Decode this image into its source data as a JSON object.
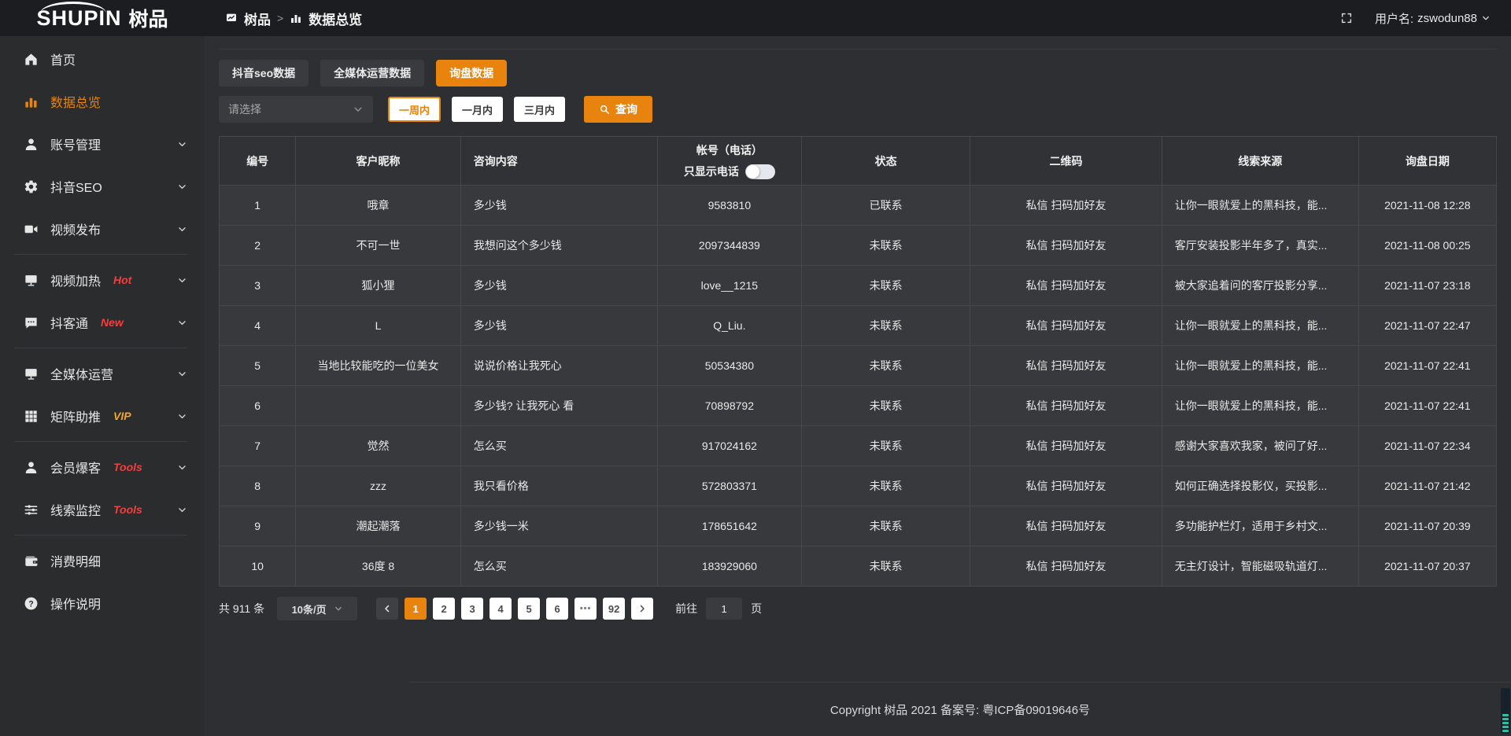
{
  "colors": {
    "accent": "#E8830D",
    "link-orange": "#E8820C",
    "badge-red": "#F23F3F",
    "badge-gold": "#F5A623"
  },
  "topbar": {
    "brand": "SHUPIN",
    "brand_cn": "树品",
    "breadcrumb": {
      "home": "树品",
      "separator": ">",
      "current": "数据总览"
    },
    "username_label": "用户名:",
    "username": "zswodun88"
  },
  "sidebar": {
    "items": [
      {
        "label": "首页",
        "icon": "home"
      },
      {
        "label": "数据总览",
        "icon": "bar-chart",
        "active": true
      },
      {
        "label": "账号管理",
        "icon": "user",
        "expandable": true
      },
      {
        "label": "抖音SEO",
        "icon": "gear",
        "expandable": true
      },
      {
        "label": "视频发布",
        "icon": "video",
        "expandable": true
      },
      {
        "divider": true
      },
      {
        "label": "视频加热",
        "icon": "screen",
        "badge": "Hot",
        "badge_color": "red",
        "expandable": true
      },
      {
        "label": "抖客通",
        "icon": "chat",
        "badge": "New",
        "badge_color": "red",
        "expandable": true
      },
      {
        "divider": true
      },
      {
        "label": "全媒体运营",
        "icon": "monitor",
        "expandable": true
      },
      {
        "label": "矩阵助推",
        "icon": "grid",
        "badge": "VIP",
        "badge_color": "gold",
        "expandable": true
      },
      {
        "divider": true
      },
      {
        "label": "会员爆客",
        "icon": "user",
        "badge": "Tools",
        "badge_color": "red",
        "expandable": true
      },
      {
        "label": "线索监控",
        "icon": "sliders",
        "badge": "Tools",
        "badge_color": "red",
        "expandable": true
      },
      {
        "divider": true
      },
      {
        "label": "消费明细",
        "icon": "wallet"
      },
      {
        "label": "操作说明",
        "icon": "question"
      }
    ]
  },
  "tabs": [
    {
      "label": "抖音seo数据"
    },
    {
      "label": "全媒体运营数据"
    },
    {
      "label": "询盘数据",
      "active": true
    }
  ],
  "filters": {
    "select_placeholder": "请选择",
    "periods": [
      {
        "label": "一周内",
        "active": true
      },
      {
        "label": "一月内"
      },
      {
        "label": "三月内"
      }
    ],
    "search_label": "查询"
  },
  "table": {
    "headers": [
      "编号",
      "客户昵称",
      "咨询内容",
      "帐号（电话）",
      "状态",
      "二维码",
      "线索来源",
      "询盘日期"
    ],
    "phone_toggle_label": "只显示电话",
    "rows": [
      {
        "id": "1",
        "nickname": "哦章",
        "content": "多少钱",
        "account": "9583810",
        "status": "已联系",
        "contacted": true,
        "qrcode": "私信 扫码加好友",
        "source": "让你一眼就爱上的黑科技，能...",
        "date": "2021-11-08 12:28"
      },
      {
        "id": "2",
        "nickname": "不可一世",
        "content": "我想问这个多少钱",
        "account": "2097344839",
        "status": "未联系",
        "qrcode": "私信 扫码加好友",
        "source": "客厅安装投影半年多了，真实...",
        "date": "2021-11-08 00:25"
      },
      {
        "id": "3",
        "nickname": "狐小狸",
        "content": "多少钱",
        "account": "love__1215",
        "status": "未联系",
        "qrcode": "私信 扫码加好友",
        "source": "被大家追着问的客厅投影分享...",
        "date": "2021-11-07 23:18"
      },
      {
        "id": "4",
        "nickname": "L",
        "content": "多少钱",
        "account": "Q_Liu.",
        "status": "未联系",
        "qrcode": "私信 扫码加好友",
        "source": "让你一眼就爱上的黑科技，能...",
        "date": "2021-11-07 22:47"
      },
      {
        "id": "5",
        "nickname": "当地比较能吃的一位美女",
        "content": "说说价格让我死心",
        "account": "50534380",
        "status": "未联系",
        "qrcode": "私信 扫码加好友",
        "source": "让你一眼就爱上的黑科技，能...",
        "date": "2021-11-07 22:41"
      },
      {
        "id": "6",
        "nickname": "",
        "content": "多少钱? 让我死心 看",
        "account": "70898792",
        "status": "未联系",
        "qrcode": "私信 扫码加好友",
        "source": "让你一眼就爱上的黑科技，能...",
        "date": "2021-11-07 22:41"
      },
      {
        "id": "7",
        "nickname": "觉然",
        "content": "怎么买",
        "account": "917024162",
        "status": "未联系",
        "qrcode": "私信 扫码加好友",
        "source": "感谢大家喜欢我家，被问了好...",
        "date": "2021-11-07 22:34"
      },
      {
        "id": "8",
        "nickname": "zzz",
        "content": "我只看价格",
        "account": "572803371",
        "status": "未联系",
        "qrcode": "私信 扫码加好友",
        "source": "如何正确选择投影仪，买投影...",
        "date": "2021-11-07 21:42"
      },
      {
        "id": "9",
        "nickname": "潮起潮落",
        "content": "多少钱一米",
        "account": "178651642",
        "status": "未联系",
        "qrcode": "私信 扫码加好友",
        "source": "多功能护栏灯，适用于乡村文...",
        "date": "2021-11-07 20:39"
      },
      {
        "id": "10",
        "nickname": "36度 8",
        "content": "怎么买",
        "account": "183929060",
        "status": "未联系",
        "qrcode": "私信 扫码加好友",
        "source": "无主灯设计，智能磁吸轨道灯...",
        "date": "2021-11-07 20:37"
      }
    ]
  },
  "pagination": {
    "total": "共 911 条",
    "page_size": "10条/页",
    "pages": [
      {
        "label": "1",
        "active": true
      },
      {
        "label": "2"
      },
      {
        "label": "3"
      },
      {
        "label": "4"
      },
      {
        "label": "5"
      },
      {
        "label": "6"
      },
      {
        "label": "•••",
        "ellipsis": true
      },
      {
        "label": "92"
      }
    ],
    "goto_label": "前往",
    "goto_value": "1",
    "goto_unit": "页"
  },
  "footer": {
    "copyright": "Copyright 树品 2021 备案号: 粤ICP备09019646号"
  }
}
